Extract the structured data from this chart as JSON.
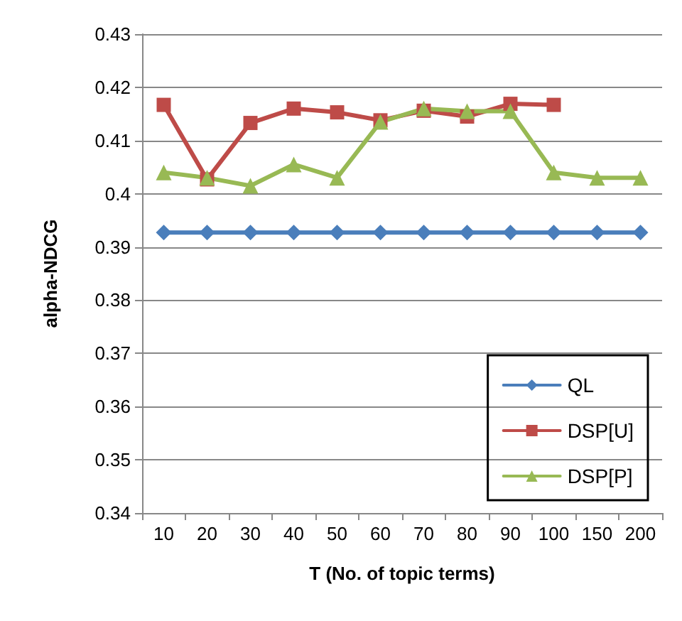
{
  "chart_data": {
    "type": "line",
    "xlabel": "T (No. of topic terms)",
    "ylabel": "alpha-NDCG",
    "categories": [
      "10",
      "20",
      "30",
      "40",
      "50",
      "60",
      "70",
      "80",
      "90",
      "100",
      "150",
      "200"
    ],
    "ylim": [
      0.34,
      0.43
    ],
    "yticks": [
      0.34,
      0.35,
      0.36,
      0.37,
      0.38,
      0.39,
      0.4,
      0.41,
      0.42,
      0.43
    ],
    "grid": "y",
    "legend": "right",
    "series": [
      {
        "name": "QL",
        "color": "#4a7ebb",
        "marker": "diamond",
        "values": [
          0.3927,
          0.3927,
          0.3927,
          0.3927,
          0.3927,
          0.3927,
          0.3927,
          0.3927,
          0.3927,
          0.3927,
          0.3927,
          0.3927
        ]
      },
      {
        "name": "DSP[U]",
        "color": "#be4b48",
        "marker": "square",
        "values": [
          0.4167,
          0.4027,
          0.4133,
          0.416,
          0.4153,
          0.4138,
          0.4156,
          0.4145,
          0.4169,
          0.4167,
          null,
          null
        ]
      },
      {
        "name": "DSP[P]",
        "color": "#98b954",
        "marker": "triangle",
        "values": [
          0.404,
          0.403,
          0.4015,
          0.4055,
          0.403,
          0.4135,
          0.416,
          0.4155,
          0.4155,
          0.404,
          0.403,
          0.403
        ]
      }
    ]
  }
}
